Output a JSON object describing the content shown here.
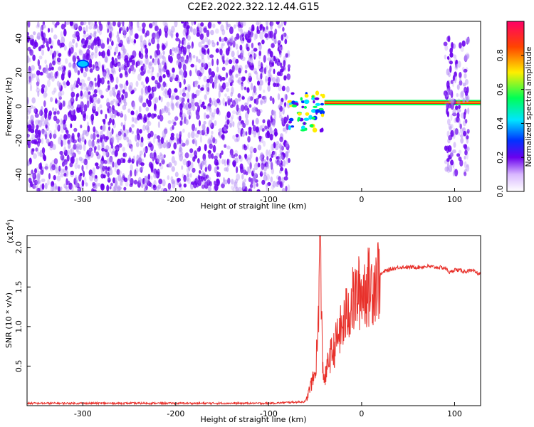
{
  "title": "C2E2.2022.322.12.44.G15",
  "colors": {
    "purple": "#6a00ee",
    "line": "#e8312b",
    "axis": "#000000"
  },
  "chart_data": [
    {
      "type": "heatmap",
      "xlabel": "Height of straight line (km)",
      "ylabel": "Frequency (Hz)",
      "xlim": [
        -360,
        128
      ],
      "ylim": [
        -50,
        50
      ],
      "xticks": [
        -300,
        -200,
        -100,
        0,
        100
      ],
      "xtick_labels": [
        "-300",
        "-200",
        "-100",
        "0",
        "100"
      ],
      "yticks": [
        -40,
        -20,
        0,
        20,
        40
      ],
      "ytick_labels": [
        "-40",
        "-20",
        "0",
        "20",
        "40"
      ],
      "colorbar": {
        "label": "Normalized spectral amplitude",
        "range": [
          0.0,
          1.0
        ],
        "ticks": [
          0.0,
          0.2,
          0.4,
          0.6,
          0.8
        ],
        "tick_labels": [
          "0.0",
          "0.2",
          "0.4",
          "0.6",
          "0.8"
        ]
      },
      "regions": [
        {
          "kind": "noise",
          "x": [
            -360,
            -78
          ],
          "y": [
            -50,
            50
          ]
        },
        {
          "kind": "signal-start",
          "x": [
            -78,
            -40
          ],
          "y": [
            -15,
            8
          ]
        },
        {
          "kind": "carrier",
          "x": [
            -40,
            128
          ],
          "y": [
            1.5,
            3
          ]
        },
        {
          "kind": "noise",
          "x": [
            90,
            115
          ],
          "y": [
            -40,
            40
          ]
        },
        {
          "kind": "blob",
          "x": [
            -305,
            -295
          ],
          "y": [
            22,
            28
          ]
        }
      ]
    },
    {
      "type": "line",
      "xlabel": "Height of straight line (km)",
      "ylabel": "SNR (10 * v/v)",
      "yscale_label": "(x10",
      "yscale_exp": "4",
      "yscale_close": ")",
      "xlim": [
        -360,
        128
      ],
      "ylim": [
        0,
        2.15
      ],
      "xticks": [
        -300,
        -200,
        -100,
        0,
        100
      ],
      "xtick_labels": [
        "-300",
        "-200",
        "-100",
        "0",
        "100"
      ],
      "yticks": [
        0.5,
        1.0,
        1.5,
        2.0
      ],
      "ytick_labels": [
        "0.5",
        "1.0",
        "1.5",
        "2.0"
      ],
      "series": [
        {
          "x": [
            -360,
            -300,
            -200,
            -100,
            -60,
            -55,
            -50,
            -47,
            -45,
            -42,
            -40,
            -35,
            -30,
            -25,
            -20,
            -15,
            -10,
            -5,
            0,
            5,
            10,
            15,
            20,
            25,
            30,
            40,
            50,
            60,
            70,
            80,
            90,
            95,
            100,
            110,
            120,
            128
          ],
          "y": [
            0.03,
            0.03,
            0.03,
            0.03,
            0.05,
            0.25,
            0.4,
            0.9,
            2.15,
            0.55,
            0.3,
            0.6,
            0.7,
            0.9,
            1.0,
            1.2,
            1.3,
            1.4,
            1.45,
            1.5,
            1.5,
            1.6,
            1.65,
            1.7,
            1.72,
            1.75,
            1.75,
            1.75,
            1.76,
            1.75,
            1.74,
            1.68,
            1.72,
            1.7,
            1.7,
            1.66
          ]
        }
      ]
    }
  ]
}
